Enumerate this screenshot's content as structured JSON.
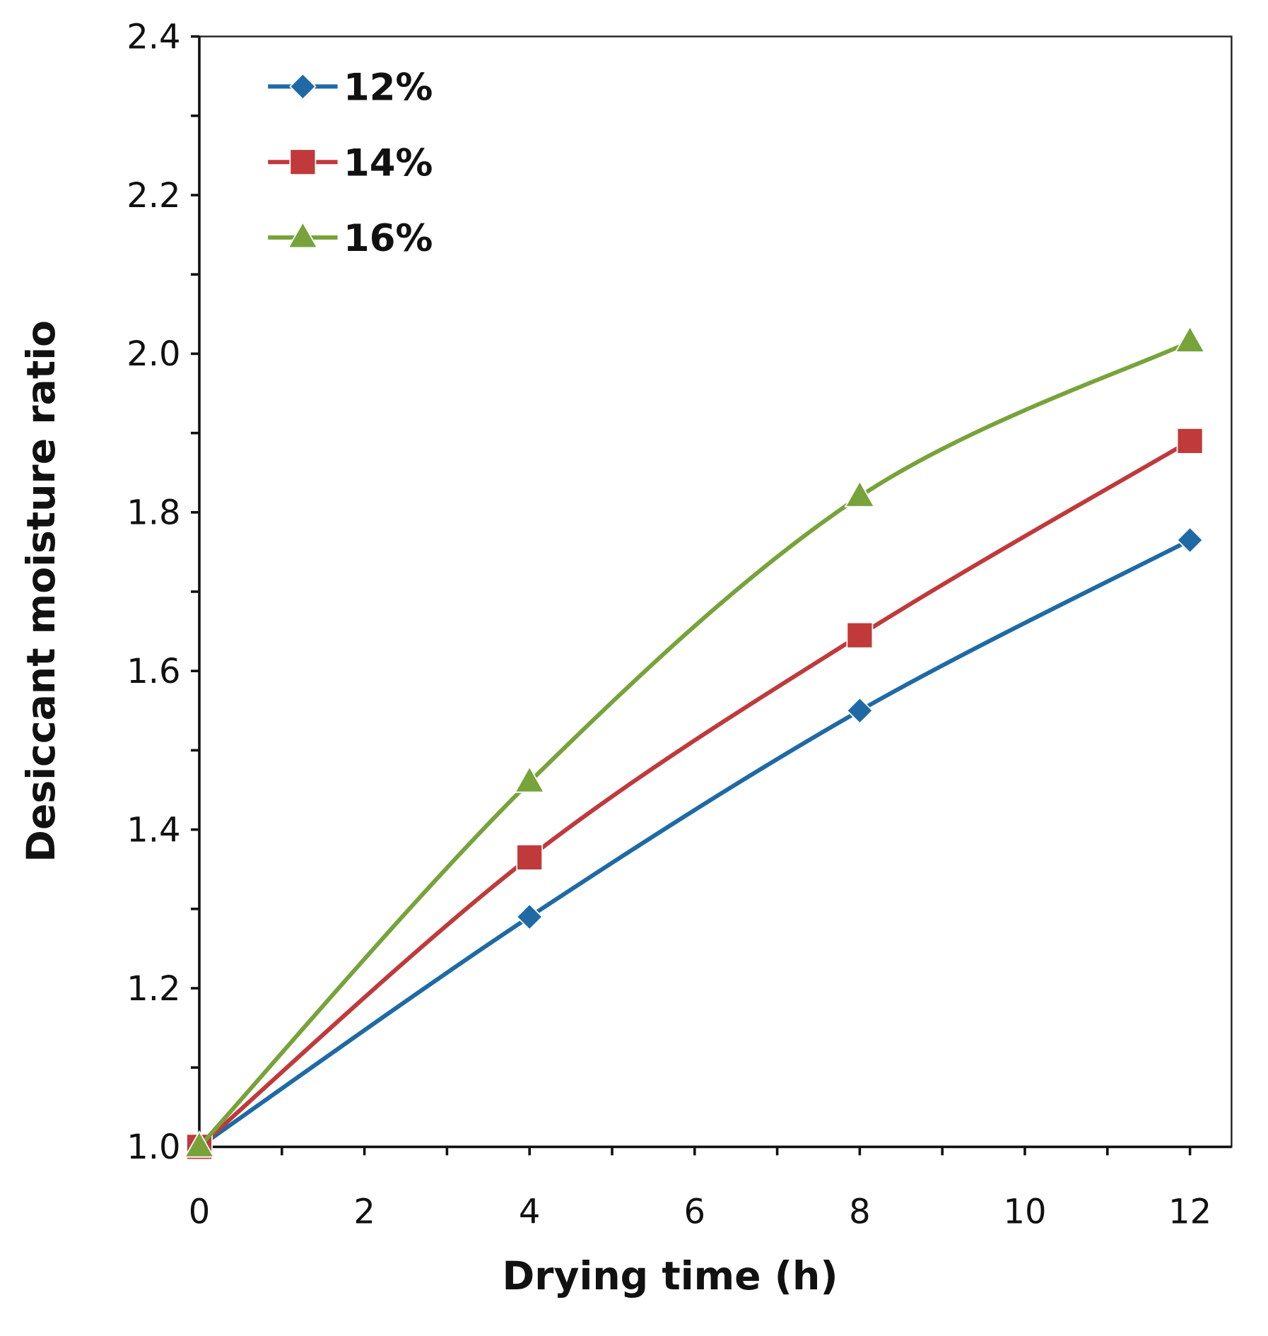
{
  "chart_data": {
    "type": "line",
    "title": "",
    "xlabel": "Drying time (h)",
    "ylabel": "Desiccant moisture ratio",
    "xlim": [
      0,
      12.5
    ],
    "ylim": [
      1.0,
      2.4
    ],
    "xticks": [
      0,
      2,
      4,
      6,
      8,
      10,
      12
    ],
    "yticks": [
      "1.0",
      "1.2",
      "1.4",
      "1.6",
      "1.8",
      "2.0",
      "2.2",
      "2.4"
    ],
    "grid": false,
    "legend_position": "top-left",
    "x": [
      0,
      4,
      8,
      12
    ],
    "series": [
      {
        "name": "12%",
        "marker": "diamond",
        "color": "#1f6aa5",
        "values": [
          1.0,
          1.29,
          1.55,
          1.765
        ]
      },
      {
        "name": "14%",
        "marker": "square",
        "color": "#c0393b",
        "values": [
          1.0,
          1.365,
          1.645,
          1.89
        ]
      },
      {
        "name": "16%",
        "marker": "triangle",
        "color": "#77a33a",
        "values": [
          1.0,
          1.46,
          1.82,
          2.015
        ]
      }
    ]
  }
}
